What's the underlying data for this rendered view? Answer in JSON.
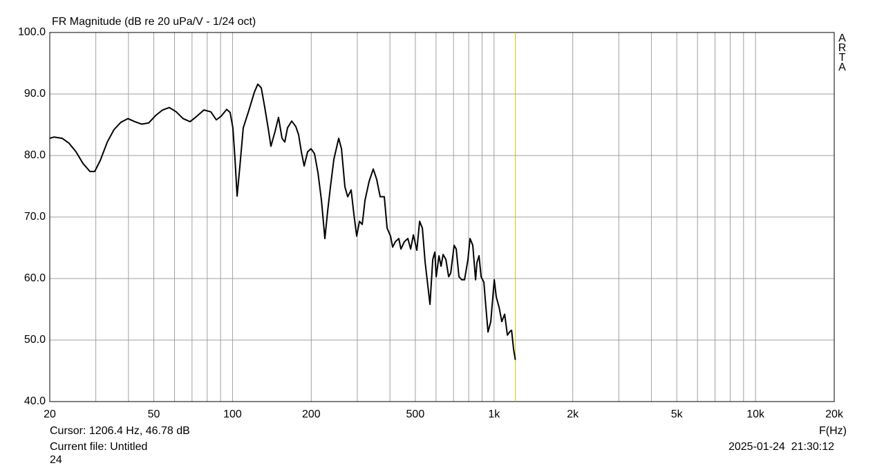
{
  "chart_data": {
    "type": "line",
    "title": "FR Magnitude (dB re 20 uPa/V - 1/24 oct)",
    "x_label": "F(Hz)",
    "brand": "ARTA",
    "log_x": true,
    "grid": true,
    "color": "#000000",
    "xlim": [
      20,
      20000
    ],
    "ylim": [
      40,
      100
    ],
    "xticks": [
      20,
      50,
      100,
      200,
      500,
      {
        "value": 1000,
        "label": "1k"
      },
      {
        "value": 2000,
        "label": "2k"
      },
      {
        "value": 5000,
        "label": "5k"
      },
      {
        "value": 10000,
        "label": "10k"
      },
      {
        "value": 20000,
        "label": "20k"
      }
    ],
    "xgrid": [
      30,
      40,
      60,
      70,
      80,
      90,
      300,
      400,
      600,
      700,
      800,
      900,
      3000,
      4000,
      6000,
      7000,
      8000,
      9000
    ],
    "yticks": [
      {
        "value": 40,
        "label": "40.0"
      },
      {
        "value": 50,
        "label": "50.0"
      },
      {
        "value": 60,
        "label": "60.0"
      },
      {
        "value": 70,
        "label": "70.0"
      },
      {
        "value": 80,
        "label": "80.0"
      },
      {
        "value": 90,
        "label": "90.0"
      },
      {
        "value": 100,
        "label": "100.0"
      }
    ],
    "cursor": {
      "x": 1206.4,
      "color": "#c8c800",
      "label": "Cursor: 1206.4 Hz, 46.78 dB"
    },
    "file_label": "Current file: Untitled",
    "file_note": "24",
    "timestamp": "2025-01-24  21:30:12",
    "x": [
      20,
      20.74,
      22.3,
      23.7,
      25.2,
      26.8,
      28.5,
      29.7,
      31.2,
      33.2,
      35.2,
      37.4,
      39.8,
      42.3,
      44.9,
      47.8,
      50.8,
      54.0,
      57.3,
      60.9,
      64.7,
      68.8,
      73.1,
      77.7,
      82.6,
      86.7,
      90.5,
      95.0,
      97.9,
      100.3,
      102.2,
      104.1,
      106.7,
      109.9,
      115.4,
      121.2,
      124.9,
      128.8,
      132.7,
      136.8,
      140.2,
      145.4,
      149.9,
      154.6,
      158.4,
      162.3,
      168.4,
      174.6,
      178.9,
      183.3,
      187.9,
      193.7,
      199.6,
      205.8,
      212.2,
      218.8,
      225.5,
      231.1,
      236.8,
      244.1,
      254.7,
      261.0,
      269.0,
      275.7,
      284.2,
      291.2,
      298.4,
      305.8,
      313.3,
      321.0,
      332.9,
      345.3,
      355.9,
      366.9,
      380.5,
      390.0,
      402.0,
      409.5,
      419.6,
      432.5,
      440.5,
      454.2,
      468.2,
      479.8,
      491.6,
      506.8,
      519.3,
      532.1,
      545.3,
      558.7,
      568.9,
      583.0,
      593.7,
      601.0,
      615.8,
      627.1,
      638.7,
      654.5,
      670.6,
      683.0,
      703.8,
      716.7,
      734.4,
      752.6,
      771.1,
      794.9,
      809.5,
      829.5,
      850.0,
      860.4,
      876.2,
      892.4,
      914.4,
      931.2,
      948.4,
      971.8,
      1002,
      1020,
      1046,
      1071,
      1098,
      1125,
      1146,
      1167,
      1188,
      1206.4
    ],
    "values": [
      82.8,
      83.0,
      82.8,
      82.0,
      80.6,
      78.7,
      77.4,
      77.4,
      79.2,
      82.2,
      84.2,
      85.4,
      86.0,
      85.5,
      85.1,
      85.3,
      86.5,
      87.4,
      87.8,
      87.1,
      86.0,
      85.5,
      86.4,
      87.4,
      87.1,
      85.8,
      86.4,
      87.5,
      87.0,
      84.5,
      79.4,
      73.4,
      78.3,
      84.5,
      87.3,
      90.3,
      91.6,
      91.0,
      87.9,
      84.5,
      81.5,
      83.9,
      86.2,
      82.8,
      82.2,
      84.5,
      85.6,
      84.7,
      83.4,
      80.6,
      78.3,
      80.6,
      81.1,
      80.3,
      77.2,
      72.7,
      66.5,
      71.0,
      74.9,
      79.4,
      82.8,
      81.1,
      74.9,
      73.3,
      74.4,
      70.4,
      66.9,
      69.3,
      68.8,
      72.7,
      75.8,
      77.8,
      76.1,
      73.3,
      73.3,
      68.2,
      66.9,
      65.1,
      66.0,
      66.5,
      64.8,
      66.0,
      66.5,
      64.8,
      67.1,
      64.6,
      69.3,
      68.2,
      62.6,
      58.7,
      55.8,
      63.1,
      64.3,
      60.3,
      63.7,
      62.0,
      63.9,
      63.1,
      60.3,
      60.9,
      65.4,
      64.8,
      60.3,
      59.8,
      59.8,
      63.1,
      66.5,
      65.4,
      59.8,
      62.6,
      63.7,
      60.3,
      59.4,
      55.3,
      51.3,
      53.0,
      59.8,
      57.0,
      55.3,
      53.0,
      54.2,
      50.8,
      51.3,
      51.6,
      48.5,
      46.78
    ]
  }
}
